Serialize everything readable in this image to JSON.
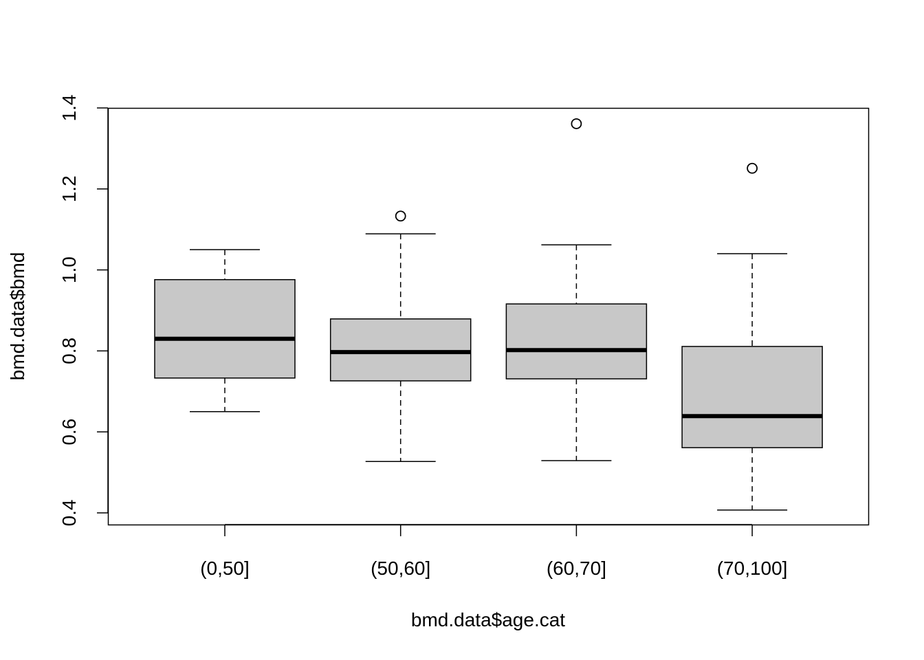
{
  "chart_data": {
    "type": "box",
    "title": "",
    "xlabel": "bmd.data$age.cat",
    "ylabel": "bmd.data$bmd",
    "categories": [
      "(0,50]",
      "(50,60]",
      "(60,70]",
      "(70,100]"
    ],
    "ylim": [
      0.371,
      1.4
    ],
    "yticks": [
      0.4,
      0.6,
      0.8,
      1.0,
      1.2,
      1.4
    ],
    "ytick_labels": [
      "0.4",
      "0.6",
      "0.8",
      "1.0",
      "1.2",
      "1.4"
    ],
    "grid": false,
    "box_fill": "#c8c8c8",
    "boxes": [
      {
        "lower_whisker": 0.65,
        "q1": 0.733,
        "median": 0.83,
        "q3": 0.976,
        "upper_whisker": 1.05,
        "outliers": []
      },
      {
        "lower_whisker": 0.527,
        "q1": 0.726,
        "median": 0.797,
        "q3": 0.879,
        "upper_whisker": 1.089,
        "outliers": [
          1.133
        ]
      },
      {
        "lower_whisker": 0.529,
        "q1": 0.731,
        "median": 0.802,
        "q3": 0.916,
        "upper_whisker": 1.062,
        "outliers": [
          1.361
        ]
      },
      {
        "lower_whisker": 0.407,
        "q1": 0.561,
        "median": 0.639,
        "q3": 0.811,
        "upper_whisker": 1.04,
        "outliers": [
          1.251
        ]
      }
    ]
  }
}
